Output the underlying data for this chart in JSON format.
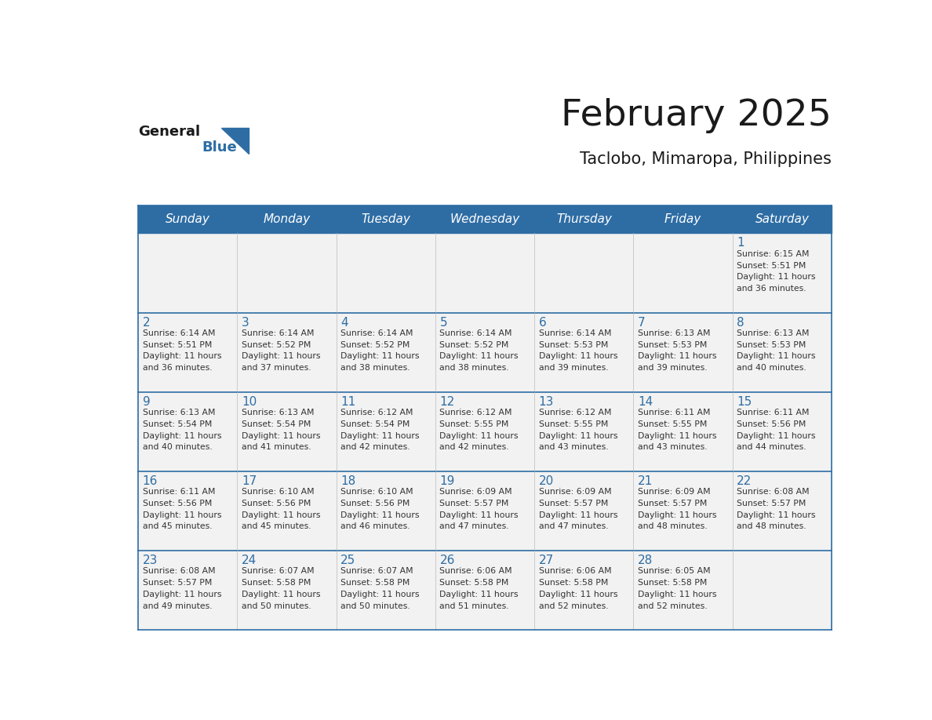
{
  "title": "February 2025",
  "subtitle": "Taclobo, Mimaropa, Philippines",
  "days_of_week": [
    "Sunday",
    "Monday",
    "Tuesday",
    "Wednesday",
    "Thursday",
    "Friday",
    "Saturday"
  ],
  "header_bg": "#2E6DA4",
  "header_text": "#FFFFFF",
  "cell_bg_light": "#F2F2F2",
  "border_color": "#2E6DA4",
  "day_number_color": "#2E6DA4",
  "cell_text_color": "#333333",
  "title_color": "#1a1a1a",
  "subtitle_color": "#1a1a1a",
  "logo_general_color": "#1a1a1a",
  "logo_blue_color": "#2E6DA4",
  "calendar_data": [
    [
      null,
      null,
      null,
      null,
      null,
      null,
      {
        "day": 1,
        "sunrise": "6:15 AM",
        "sunset": "5:51 PM",
        "daylight_hours": 11,
        "daylight_minutes": 36
      }
    ],
    [
      {
        "day": 2,
        "sunrise": "6:14 AM",
        "sunset": "5:51 PM",
        "daylight_hours": 11,
        "daylight_minutes": 36
      },
      {
        "day": 3,
        "sunrise": "6:14 AM",
        "sunset": "5:52 PM",
        "daylight_hours": 11,
        "daylight_minutes": 37
      },
      {
        "day": 4,
        "sunrise": "6:14 AM",
        "sunset": "5:52 PM",
        "daylight_hours": 11,
        "daylight_minutes": 38
      },
      {
        "day": 5,
        "sunrise": "6:14 AM",
        "sunset": "5:52 PM",
        "daylight_hours": 11,
        "daylight_minutes": 38
      },
      {
        "day": 6,
        "sunrise": "6:14 AM",
        "sunset": "5:53 PM",
        "daylight_hours": 11,
        "daylight_minutes": 39
      },
      {
        "day": 7,
        "sunrise": "6:13 AM",
        "sunset": "5:53 PM",
        "daylight_hours": 11,
        "daylight_minutes": 39
      },
      {
        "day": 8,
        "sunrise": "6:13 AM",
        "sunset": "5:53 PM",
        "daylight_hours": 11,
        "daylight_minutes": 40
      }
    ],
    [
      {
        "day": 9,
        "sunrise": "6:13 AM",
        "sunset": "5:54 PM",
        "daylight_hours": 11,
        "daylight_minutes": 40
      },
      {
        "day": 10,
        "sunrise": "6:13 AM",
        "sunset": "5:54 PM",
        "daylight_hours": 11,
        "daylight_minutes": 41
      },
      {
        "day": 11,
        "sunrise": "6:12 AM",
        "sunset": "5:54 PM",
        "daylight_hours": 11,
        "daylight_minutes": 42
      },
      {
        "day": 12,
        "sunrise": "6:12 AM",
        "sunset": "5:55 PM",
        "daylight_hours": 11,
        "daylight_minutes": 42
      },
      {
        "day": 13,
        "sunrise": "6:12 AM",
        "sunset": "5:55 PM",
        "daylight_hours": 11,
        "daylight_minutes": 43
      },
      {
        "day": 14,
        "sunrise": "6:11 AM",
        "sunset": "5:55 PM",
        "daylight_hours": 11,
        "daylight_minutes": 43
      },
      {
        "day": 15,
        "sunrise": "6:11 AM",
        "sunset": "5:56 PM",
        "daylight_hours": 11,
        "daylight_minutes": 44
      }
    ],
    [
      {
        "day": 16,
        "sunrise": "6:11 AM",
        "sunset": "5:56 PM",
        "daylight_hours": 11,
        "daylight_minutes": 45
      },
      {
        "day": 17,
        "sunrise": "6:10 AM",
        "sunset": "5:56 PM",
        "daylight_hours": 11,
        "daylight_minutes": 45
      },
      {
        "day": 18,
        "sunrise": "6:10 AM",
        "sunset": "5:56 PM",
        "daylight_hours": 11,
        "daylight_minutes": 46
      },
      {
        "day": 19,
        "sunrise": "6:09 AM",
        "sunset": "5:57 PM",
        "daylight_hours": 11,
        "daylight_minutes": 47
      },
      {
        "day": 20,
        "sunrise": "6:09 AM",
        "sunset": "5:57 PM",
        "daylight_hours": 11,
        "daylight_minutes": 47
      },
      {
        "day": 21,
        "sunrise": "6:09 AM",
        "sunset": "5:57 PM",
        "daylight_hours": 11,
        "daylight_minutes": 48
      },
      {
        "day": 22,
        "sunrise": "6:08 AM",
        "sunset": "5:57 PM",
        "daylight_hours": 11,
        "daylight_minutes": 48
      }
    ],
    [
      {
        "day": 23,
        "sunrise": "6:08 AM",
        "sunset": "5:57 PM",
        "daylight_hours": 11,
        "daylight_minutes": 49
      },
      {
        "day": 24,
        "sunrise": "6:07 AM",
        "sunset": "5:58 PM",
        "daylight_hours": 11,
        "daylight_minutes": 50
      },
      {
        "day": 25,
        "sunrise": "6:07 AM",
        "sunset": "5:58 PM",
        "daylight_hours": 11,
        "daylight_minutes": 50
      },
      {
        "day": 26,
        "sunrise": "6:06 AM",
        "sunset": "5:58 PM",
        "daylight_hours": 11,
        "daylight_minutes": 51
      },
      {
        "day": 27,
        "sunrise": "6:06 AM",
        "sunset": "5:58 PM",
        "daylight_hours": 11,
        "daylight_minutes": 52
      },
      {
        "day": 28,
        "sunrise": "6:05 AM",
        "sunset": "5:58 PM",
        "daylight_hours": 11,
        "daylight_minutes": 52
      },
      null
    ]
  ]
}
